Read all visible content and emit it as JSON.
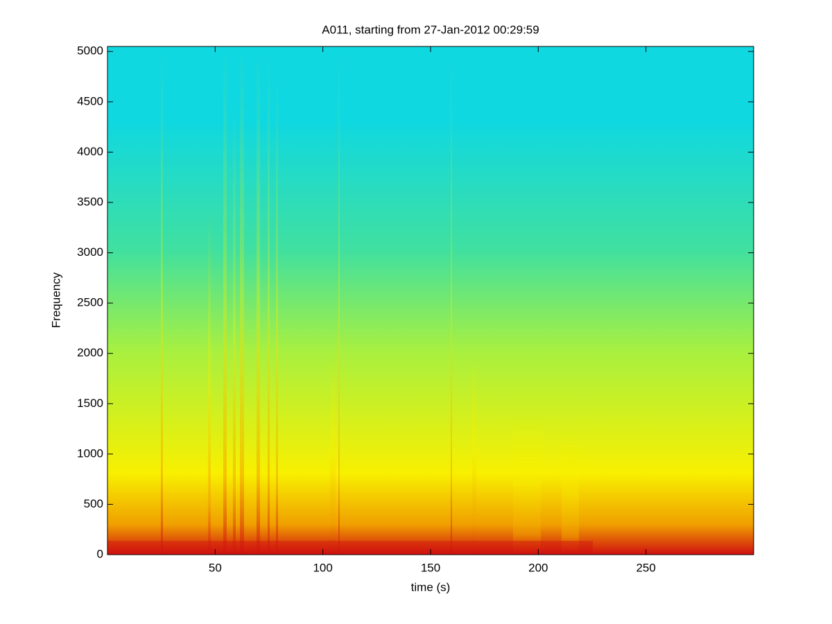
{
  "chart_data": {
    "type": "spectrogram",
    "title": "A011, starting from 27-Jan-2012 00:29:59",
    "x_label": "time (s)",
    "y_label": "Frequency",
    "xlim": [
      0,
      300
    ],
    "xticks": [
      50,
      100,
      150,
      200,
      250
    ],
    "ylim": [
      0,
      5050
    ],
    "yticks": [
      0,
      500,
      1000,
      1500,
      2000,
      2500,
      3000,
      3500,
      4000,
      4500,
      5000
    ],
    "colormap": [
      "#d01010",
      "#f0a000",
      "#f8f000",
      "#a8f040",
      "#40e0a0",
      "#10d8e0"
    ]
  }
}
